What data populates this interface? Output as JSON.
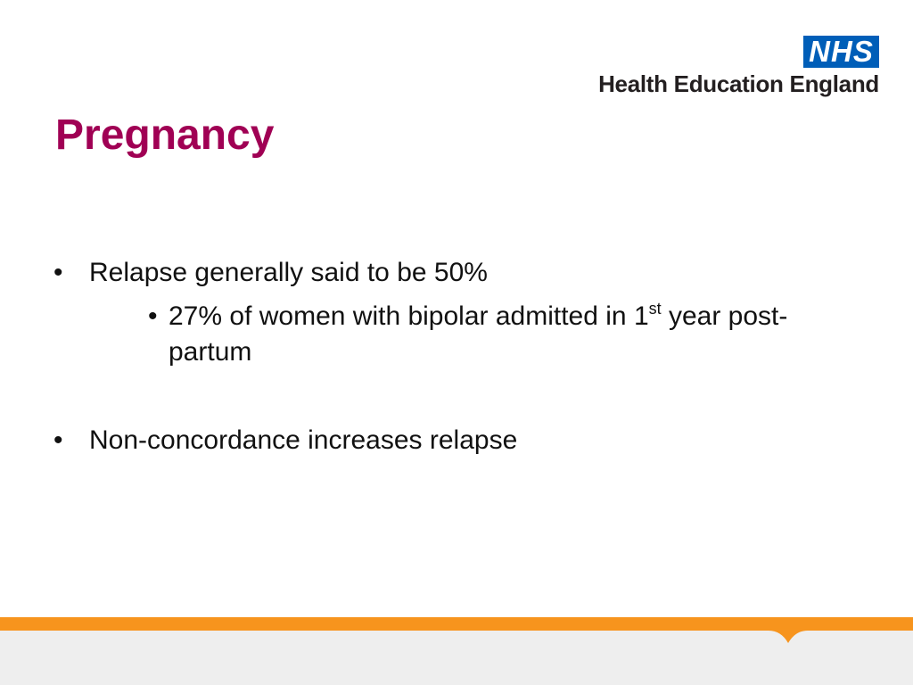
{
  "header": {
    "logo_badge": "NHS",
    "logo_org": "Health Education England"
  },
  "slide": {
    "title": "Pregnancy",
    "bullets": [
      {
        "text": "Relapse generally said to be 50%",
        "subbullets": [
          {
            "text_before": "27% of women with bipolar admitted in 1",
            "superscript": "st",
            "text_after": " year post-partum"
          }
        ]
      },
      {
        "text": "Non-concordance increases relapse"
      }
    ],
    "bullet_symbol": "•"
  },
  "colors": {
    "title": "#a00054",
    "nhs_blue": "#005eb8",
    "footer_orange": "#f7941d",
    "footer_grey": "#eeeeee"
  }
}
